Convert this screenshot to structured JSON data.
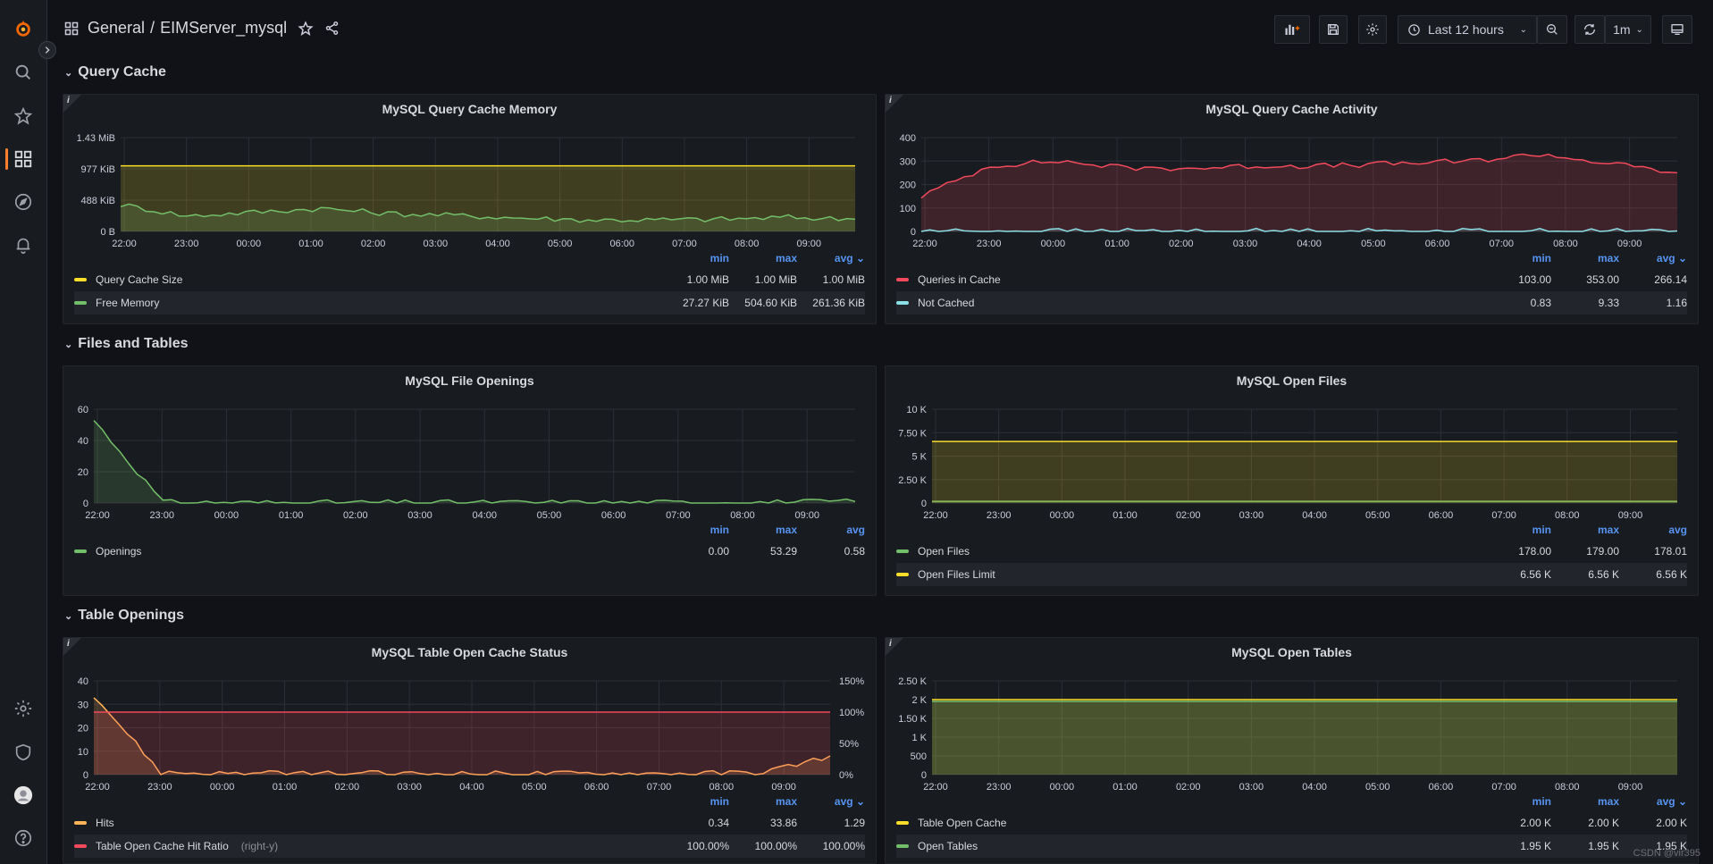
{
  "breadcrumb": {
    "folder": "General",
    "separator": "/",
    "dashboard": "EIMServer_mysql"
  },
  "toolbar": {
    "time_range": "Last 12 hours",
    "refresh_interval": "1m"
  },
  "rows": [
    {
      "title": "Query Cache"
    },
    {
      "title": "Files and Tables"
    },
    {
      "title": "Table Openings"
    }
  ],
  "xticks": [
    "22:00",
    "23:00",
    "00:00",
    "01:00",
    "02:00",
    "03:00",
    "04:00",
    "05:00",
    "06:00",
    "07:00",
    "08:00",
    "09:00"
  ],
  "panels": [
    {
      "title": "MySQL Query Cache Memory",
      "legend_headers": [
        "min",
        "max",
        "avg"
      ],
      "sort_column": 2,
      "series": [
        {
          "name": "Query Cache Size",
          "color": "#fade2a",
          "values": [
            "1.00 MiB",
            "1.00 MiB",
            "1.00 MiB"
          ]
        },
        {
          "name": "Free Memory",
          "color": "#73bf69",
          "values": [
            "27.27 KiB",
            "504.60 KiB",
            "261.36 KiB"
          ]
        }
      ]
    },
    {
      "title": "MySQL Query Cache Activity",
      "legend_headers": [
        "min",
        "max",
        "avg"
      ],
      "sort_column": 2,
      "series": [
        {
          "name": "Queries in Cache",
          "color": "#f2495c",
          "values": [
            "103.00",
            "353.00",
            "266.14"
          ]
        },
        {
          "name": "Not Cached",
          "color": "#8ae0e6",
          "values": [
            "0.83",
            "9.33",
            "1.16"
          ]
        }
      ]
    },
    {
      "title": "MySQL File Openings",
      "legend_headers": [
        "min",
        "max",
        "avg"
      ],
      "series": [
        {
          "name": "Openings",
          "color": "#73bf69",
          "values": [
            "0.00",
            "53.29",
            "0.58"
          ]
        }
      ]
    },
    {
      "title": "MySQL Open Files",
      "legend_headers": [
        "min",
        "max",
        "avg"
      ],
      "series": [
        {
          "name": "Open Files",
          "color": "#73bf69",
          "values": [
            "178.00",
            "179.00",
            "178.01"
          ]
        },
        {
          "name": "Open Files Limit",
          "color": "#fade2a",
          "values": [
            "6.56 K",
            "6.56 K",
            "6.56 K"
          ]
        }
      ]
    },
    {
      "title": "MySQL Table Open Cache Status",
      "legend_headers": [
        "min",
        "max",
        "avg"
      ],
      "sort_column": 2,
      "series": [
        {
          "name": "Hits",
          "color": "#ffb357",
          "values": [
            "0.34",
            "33.86",
            "1.29"
          ]
        },
        {
          "name": "Table Open Cache Hit Ratio",
          "suffix": "(right-y)",
          "color": "#f2495c",
          "values": [
            "100.00%",
            "100.00%",
            "100.00%"
          ]
        }
      ]
    },
    {
      "title": "MySQL Open Tables",
      "legend_headers": [
        "min",
        "max",
        "avg"
      ],
      "sort_column": 2,
      "series": [
        {
          "name": "Table Open Cache",
          "color": "#fade2a",
          "values": [
            "2.00 K",
            "2.00 K",
            "2.00 K"
          ]
        },
        {
          "name": "Open Tables",
          "color": "#73bf69",
          "values": [
            "1.95 K",
            "1.95 K",
            "1.95 K"
          ]
        }
      ]
    }
  ],
  "chart_data": [
    {
      "type": "line",
      "title": "MySQL Query Cache Memory",
      "x": [
        "22:00",
        "23:00",
        "00:00",
        "01:00",
        "02:00",
        "03:00",
        "04:00",
        "05:00",
        "06:00",
        "07:00",
        "08:00",
        "09:00"
      ],
      "yticks": [
        "0 B",
        "488 KiB",
        "977 KiB",
        "1.43 MiB"
      ],
      "ylim": [
        0,
        1465
      ],
      "series": [
        {
          "name": "Query Cache Size",
          "values": [
            1024,
            1024,
            1024,
            1024,
            1024,
            1024,
            1024,
            1024,
            1024,
            1024,
            1024,
            1024
          ]
        },
        {
          "name": "Free Memory",
          "values": [
            420,
            240,
            300,
            360,
            280,
            250,
            210,
            180,
            180,
            190,
            220,
            190
          ]
        }
      ]
    },
    {
      "type": "line",
      "title": "MySQL Query Cache Activity",
      "x": [
        "22:00",
        "23:00",
        "00:00",
        "01:00",
        "02:00",
        "03:00",
        "04:00",
        "05:00",
        "06:00",
        "07:00",
        "08:00",
        "09:00"
      ],
      "yticks": [
        "0",
        "100",
        "200",
        "300",
        "400"
      ],
      "ylim": [
        0,
        400
      ],
      "series": [
        {
          "name": "Queries in Cache",
          "values": [
            150,
            280,
            300,
            270,
            270,
            280,
            280,
            290,
            300,
            330,
            290,
            250
          ]
        },
        {
          "name": "Not Cached",
          "values": [
            2,
            1,
            1,
            1,
            1,
            1,
            1,
            1,
            1,
            1,
            1,
            2
          ]
        }
      ]
    },
    {
      "type": "line",
      "title": "MySQL File Openings",
      "x": [
        "22:00",
        "23:00",
        "00:00",
        "01:00",
        "02:00",
        "03:00",
        "04:00",
        "05:00",
        "06:00",
        "07:00",
        "08:00",
        "09:00"
      ],
      "yticks": [
        "0",
        "20",
        "40",
        "60"
      ],
      "ylim": [
        0,
        60
      ],
      "series": [
        {
          "name": "Openings",
          "values": [
            53,
            0.5,
            0.3,
            0.3,
            0.3,
            0.3,
            0.3,
            0.3,
            0.3,
            0.5,
            0.6,
            1
          ]
        }
      ]
    },
    {
      "type": "line",
      "title": "MySQL Open Files",
      "x": [
        "22:00",
        "23:00",
        "00:00",
        "01:00",
        "02:00",
        "03:00",
        "04:00",
        "05:00",
        "06:00",
        "07:00",
        "08:00",
        "09:00"
      ],
      "yticks": [
        "0",
        "2.50 K",
        "5 K",
        "7.50 K",
        "10 K"
      ],
      "ylim": [
        0,
        10000
      ],
      "series": [
        {
          "name": "Open Files",
          "values": [
            178,
            178,
            178,
            178,
            178,
            178,
            178,
            178,
            178,
            178,
            178,
            178
          ]
        },
        {
          "name": "Open Files Limit",
          "values": [
            6560,
            6560,
            6560,
            6560,
            6560,
            6560,
            6560,
            6560,
            6560,
            6560,
            6560,
            6560
          ]
        }
      ]
    },
    {
      "type": "line",
      "title": "MySQL Table Open Cache Status",
      "x": [
        "22:00",
        "23:00",
        "00:00",
        "01:00",
        "02:00",
        "03:00",
        "04:00",
        "05:00",
        "06:00",
        "07:00",
        "08:00",
        "09:00"
      ],
      "yticks": [
        "0",
        "10",
        "20",
        "30",
        "40"
      ],
      "y2ticks": [
        "0%",
        "50%",
        "100%",
        "150%"
      ],
      "ylim": [
        0,
        40
      ],
      "y2lim": [
        0,
        150
      ],
      "series": [
        {
          "name": "Hits",
          "values": [
            34,
            1,
            0.5,
            0.5,
            0.5,
            0.5,
            0.5,
            0.5,
            0.5,
            0.5,
            1,
            8
          ]
        },
        {
          "name": "Table Open Cache Hit Ratio",
          "axis": "right",
          "values": [
            100,
            100,
            100,
            100,
            100,
            100,
            100,
            100,
            100,
            100,
            100,
            100
          ]
        }
      ]
    },
    {
      "type": "line",
      "title": "MySQL Open Tables",
      "x": [
        "22:00",
        "23:00",
        "00:00",
        "01:00",
        "02:00",
        "03:00",
        "04:00",
        "05:00",
        "06:00",
        "07:00",
        "08:00",
        "09:00"
      ],
      "yticks": [
        "0",
        "500",
        "1 K",
        "1.50 K",
        "2 K",
        "2.50 K"
      ],
      "ylim": [
        0,
        2500
      ],
      "series": [
        {
          "name": "Table Open Cache",
          "values": [
            2000,
            2000,
            2000,
            2000,
            2000,
            2000,
            2000,
            2000,
            2000,
            2000,
            2000,
            2000
          ]
        },
        {
          "name": "Open Tables",
          "values": [
            1950,
            1950,
            1950,
            1950,
            1950,
            1950,
            1950,
            1950,
            1950,
            1950,
            1950,
            1950
          ]
        }
      ]
    }
  ],
  "watermark": "CSDN @vir395"
}
